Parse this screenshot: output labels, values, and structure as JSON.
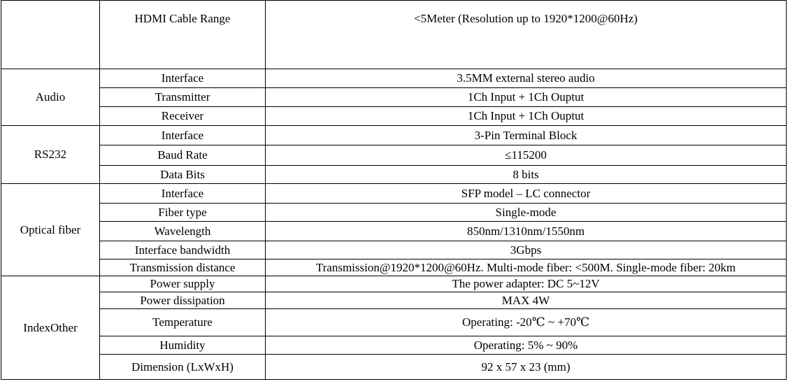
{
  "table": {
    "header_row": {
      "label": "HDMI Cable Range",
      "value": "<5Meter (Resolution up to 1920*1200@60Hz)"
    },
    "groups": [
      {
        "name": "Audio",
        "rows": [
          {
            "label": "Interface",
            "value": "3.5MM external stereo audio"
          },
          {
            "label": "Transmitter",
            "value": "1Ch Input + 1Ch Ouptut"
          },
          {
            "label": "Receiver",
            "value": "1Ch Input + 1Ch Ouptut"
          }
        ]
      },
      {
        "name": "RS232",
        "rows": [
          {
            "label": "Interface",
            "value": "3-Pin Terminal Block"
          },
          {
            "label": "Baud Rate",
            "value": "≤115200"
          },
          {
            "label": "Data Bits",
            "value": "8 bits"
          }
        ]
      },
      {
        "name": "Optical fiber",
        "rows": [
          {
            "label": "Interface",
            "value": "SFP model – LC connector"
          },
          {
            "label": "Fiber type",
            "value": "Single-mode"
          },
          {
            "label": "Wavelength",
            "value": "850nm/1310nm/1550nm"
          },
          {
            "label": "Interface bandwidth",
            "value": "3Gbps"
          },
          {
            "label": "Transmission distance",
            "value": "Transmission@1920*1200@60Hz. Multi-mode fiber: <500M. Single-mode fiber: 20km"
          }
        ]
      },
      {
        "name": "IndexOther",
        "rows": [
          {
            "label": "Power supply",
            "value": "The power adapter: DC 5~12V"
          },
          {
            "label": "Power dissipation",
            "value": "MAX 4W"
          },
          {
            "label": "Temperature",
            "value": "Operating: -20℃ ~ +70℃"
          },
          {
            "label": "Humidity",
            "value": "Operating: 5% ~ 90%"
          },
          {
            "label": "Dimension (LxWxH)",
            "value": "92 x 57 x 23 (mm)"
          }
        ]
      }
    ]
  }
}
